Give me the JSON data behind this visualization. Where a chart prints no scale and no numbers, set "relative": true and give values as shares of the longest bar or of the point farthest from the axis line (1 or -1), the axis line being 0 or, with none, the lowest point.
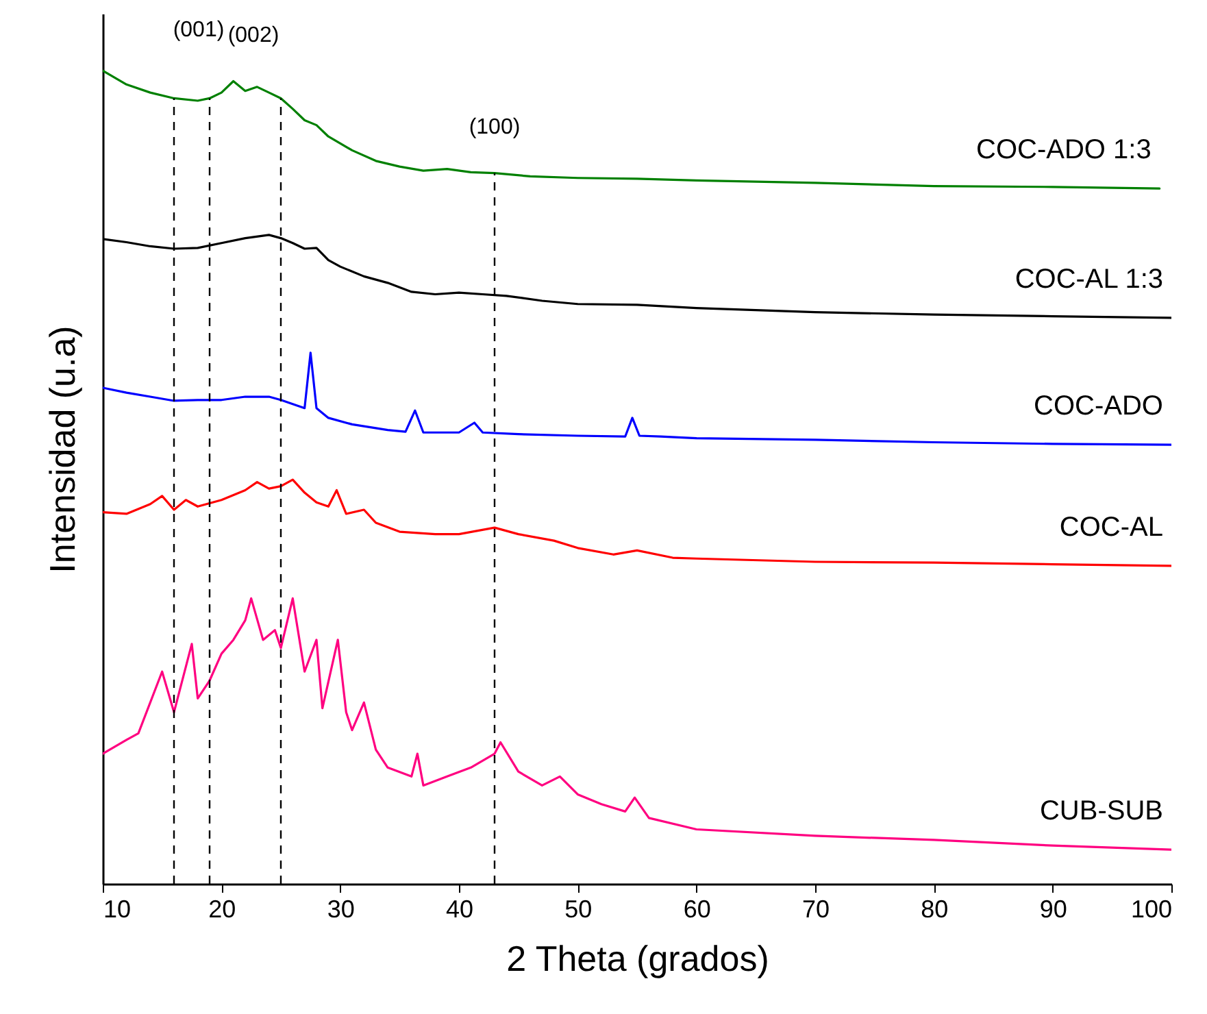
{
  "chart_data": {
    "type": "line",
    "xlabel": "2 Theta (grados)",
    "ylabel": "Intensidad (u.a)",
    "relative": true,
    "grid": false,
    "tick_labels": "x",
    "line_style": "solid",
    "marker": "none",
    "xlim": [
      10,
      100
    ],
    "xticks": [
      10,
      20,
      30,
      40,
      50,
      60,
      70,
      80,
      90,
      100
    ],
    "series": [
      {
        "name": "COC-ADO 1:3",
        "color": "#008000",
        "x": [
          10,
          12,
          14,
          16,
          18,
          19,
          20,
          21,
          22,
          23,
          24,
          25,
          26,
          27,
          28,
          29,
          31,
          33,
          35,
          37,
          39,
          41,
          43,
          46,
          50,
          55,
          60,
          70,
          80,
          90,
          99
        ],
        "values": [
          1.0,
          0.983,
          0.973,
          0.966,
          0.963,
          0.966,
          0.973,
          0.987,
          0.975,
          0.98,
          0.973,
          0.966,
          0.953,
          0.939,
          0.933,
          0.919,
          0.902,
          0.889,
          0.882,
          0.877,
          0.879,
          0.875,
          0.874,
          0.87,
          0.868,
          0.867,
          0.865,
          0.862,
          0.858,
          0.857,
          0.855
        ]
      },
      {
        "name": "COC-AL 1:3",
        "color": "#000000",
        "x": [
          10,
          12,
          14,
          16,
          18,
          20,
          22,
          24,
          25,
          26,
          27,
          28,
          29,
          30,
          32,
          34,
          36,
          38,
          40,
          42,
          44,
          47,
          50,
          55,
          60,
          70,
          80,
          90,
          100
        ],
        "values": [
          0.793,
          0.789,
          0.784,
          0.781,
          0.782,
          0.788,
          0.794,
          0.798,
          0.794,
          0.788,
          0.781,
          0.782,
          0.767,
          0.759,
          0.747,
          0.739,
          0.728,
          0.725,
          0.727,
          0.725,
          0.723,
          0.717,
          0.713,
          0.712,
          0.708,
          0.703,
          0.7,
          0.698,
          0.696
        ]
      },
      {
        "name": "COC-ADO",
        "color": "#0000ff",
        "x": [
          10,
          12,
          14,
          16,
          18,
          20,
          22,
          24,
          25,
          26,
          27,
          27.5,
          28,
          29,
          31,
          34,
          35.5,
          36.3,
          37,
          40,
          41.3,
          42,
          45,
          50,
          54,
          54.6,
          55.2,
          57,
          60,
          70,
          80,
          90,
          100
        ],
        "values": [
          0.61,
          0.604,
          0.599,
          0.594,
          0.595,
          0.595,
          0.599,
          0.599,
          0.595,
          0.59,
          0.585,
          0.653,
          0.585,
          0.573,
          0.565,
          0.558,
          0.556,
          0.582,
          0.555,
          0.555,
          0.567,
          0.555,
          0.553,
          0.551,
          0.55,
          0.573,
          0.551,
          0.55,
          0.548,
          0.546,
          0.543,
          0.541,
          0.54
        ]
      },
      {
        "name": "COC-AL",
        "color": "#ff0000",
        "x": [
          10,
          12,
          14,
          15,
          16,
          17,
          18,
          20,
          22,
          23,
          24,
          25,
          26,
          27,
          28,
          29,
          29.7,
          30.5,
          32,
          33,
          35,
          38,
          40,
          43,
          45,
          48,
          50,
          53,
          55,
          58,
          60,
          70,
          80,
          90,
          100
        ],
        "values": [
          0.457,
          0.455,
          0.467,
          0.477,
          0.46,
          0.472,
          0.464,
          0.472,
          0.484,
          0.494,
          0.486,
          0.489,
          0.497,
          0.481,
          0.469,
          0.464,
          0.484,
          0.455,
          0.46,
          0.444,
          0.433,
          0.43,
          0.43,
          0.438,
          0.43,
          0.422,
          0.413,
          0.405,
          0.41,
          0.401,
          0.4,
          0.396,
          0.395,
          0.393,
          0.391
        ]
      },
      {
        "name": "CUB-SUB",
        "color": "#ff0080",
        "x": [
          10,
          12,
          13,
          15,
          16,
          17.5,
          18,
          19,
          20,
          21,
          22,
          22.5,
          23.5,
          24.5,
          25,
          26,
          27,
          28,
          28.5,
          29.8,
          30.5,
          31,
          32,
          33,
          34,
          36,
          36.5,
          37,
          39,
          41,
          43,
          43.5,
          45,
          47,
          48.5,
          50,
          52,
          54,
          54.8,
          56,
          60,
          70,
          80,
          90,
          100
        ],
        "values": [
          0.16,
          0.177,
          0.185,
          0.261,
          0.211,
          0.295,
          0.228,
          0.25,
          0.283,
          0.3,
          0.324,
          0.351,
          0.3,
          0.312,
          0.29,
          0.351,
          0.261,
          0.3,
          0.216,
          0.3,
          0.211,
          0.189,
          0.223,
          0.165,
          0.143,
          0.132,
          0.16,
          0.121,
          0.132,
          0.143,
          0.16,
          0.174,
          0.138,
          0.121,
          0.132,
          0.11,
          0.098,
          0.089,
          0.106,
          0.081,
          0.067,
          0.059,
          0.054,
          0.047,
          0.042
        ]
      }
    ],
    "ref_lines": [
      {
        "axis": "x",
        "value": 16,
        "color": "#000000",
        "line_style": "dashed"
      },
      {
        "axis": "x",
        "value": 19,
        "color": "#000000",
        "line_style": "dashed"
      },
      {
        "axis": "x",
        "value": 25,
        "color": "#000000",
        "line_style": "dashed"
      },
      {
        "axis": "x",
        "value": 43,
        "color": "#000000",
        "line_style": "dashed"
      }
    ],
    "annotations": [
      "(001)",
      "(002)",
      "(100)"
    ]
  }
}
